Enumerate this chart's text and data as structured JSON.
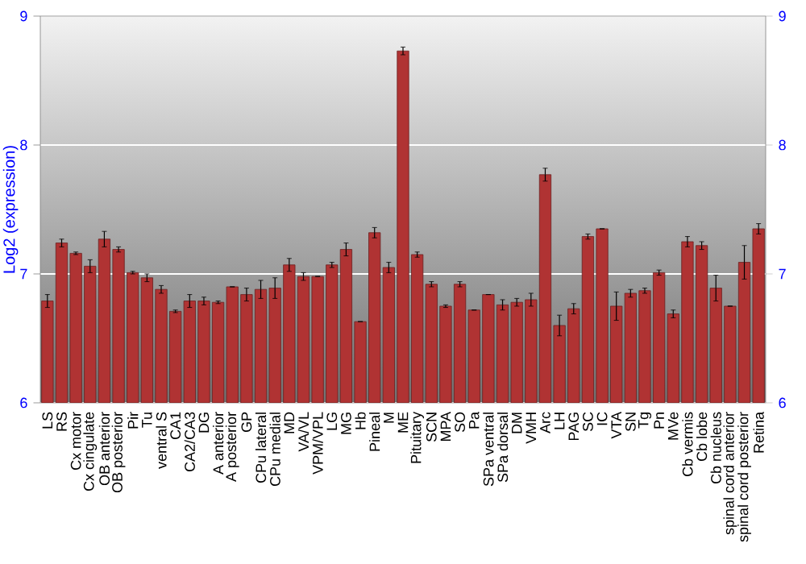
{
  "chart_data": {
    "type": "bar",
    "ylabel": "Log2 (expression)",
    "categories": [
      "LS",
      "RS",
      "Cx motor",
      "Cx cingulate",
      "OB anterior",
      "OB posterior",
      "Pir",
      "Tu",
      "ventral S",
      "CA1",
      "CA2/CA3",
      "DG",
      "A anterior",
      "A posterior",
      "GP",
      "CPu lateral",
      "CPu medial",
      "MD",
      "VA/VL",
      "VPM/VPL",
      "LG",
      "MG",
      "Hb",
      "Pineal",
      "M",
      "ME",
      "Pituitary",
      "SCN",
      "MPA",
      "SO",
      "Pa",
      "SPa ventral",
      "SPa dorsal",
      "DM",
      "VMH",
      "Arc",
      "LH",
      "PAG",
      "SC",
      "IC",
      "VTA",
      "SN",
      "Tg",
      "Pn",
      "MVe",
      "Cb vermis",
      "Cb lobe",
      "Cb nucleus",
      "spinal cord anterior",
      "spinal cord posterior",
      "Retina"
    ],
    "values": [
      6.79,
      7.24,
      7.16,
      7.06,
      7.27,
      7.19,
      7.01,
      6.97,
      6.88,
      6.71,
      6.79,
      6.79,
      6.78,
      6.9,
      6.84,
      6.88,
      6.89,
      7.07,
      6.98,
      6.98,
      7.07,
      7.19,
      6.63,
      7.32,
      7.05,
      8.73,
      7.15,
      6.92,
      6.75,
      6.92,
      6.72,
      6.84,
      6.76,
      6.78,
      6.8,
      7.77,
      6.6,
      6.73,
      7.29,
      7.35,
      6.75,
      6.85,
      6.87,
      7.01,
      6.69,
      7.25,
      7.22,
      6.89,
      6.75,
      7.09,
      7.35
    ],
    "errors": [
      0.05,
      0.03,
      0.01,
      0.05,
      0.06,
      0.02,
      0.01,
      0.03,
      0.03,
      0.01,
      0.05,
      0.03,
      0.01,
      null,
      0.05,
      0.07,
      0.08,
      0.05,
      0.03,
      null,
      0.02,
      0.05,
      null,
      0.04,
      0.04,
      0.03,
      0.02,
      0.02,
      0.01,
      0.02,
      null,
      null,
      0.04,
      0.03,
      0.05,
      0.05,
      0.08,
      0.04,
      0.02,
      null,
      0.11,
      0.03,
      0.02,
      0.02,
      0.03,
      0.04,
      0.03,
      0.1,
      null,
      0.13,
      0.04
    ],
    "color": "#b03333",
    "ylim": [
      6,
      9
    ],
    "yticks": [
      6,
      7,
      8,
      9
    ],
    "y2lim": [
      6,
      9
    ],
    "y2ticks": [
      6,
      7,
      8,
      9
    ],
    "grid": "y"
  }
}
